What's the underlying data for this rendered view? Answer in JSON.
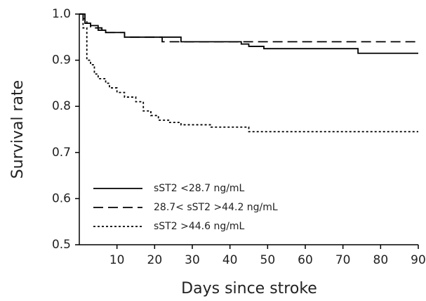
{
  "chart_data": {
    "type": "line",
    "ylabel": "Survival rate",
    "xlabel": "Days since stroke",
    "xlim": [
      0,
      90
    ],
    "xticks": [
      10,
      20,
      30,
      40,
      50,
      60,
      70,
      80,
      90
    ],
    "ylim": [
      0.5,
      1
    ],
    "yticks": [
      0.5,
      0.6,
      0.7,
      0.8,
      0.9,
      {
        "value": 1,
        "label": "1.0"
      }
    ],
    "legend": "lower left",
    "series": [
      {
        "name": "sST2 <28.7 ng/mL",
        "color": "#000000",
        "dash": "solid",
        "x": [
          0,
          1.5,
          1.5,
          3,
          3,
          5,
          5,
          7,
          7,
          12,
          12,
          27,
          27,
          43,
          43,
          45,
          45,
          49,
          49,
          74,
          74,
          90
        ],
        "values": [
          1,
          1,
          0.98,
          0.98,
          0.975,
          0.975,
          0.965,
          0.965,
          0.96,
          0.96,
          0.95,
          0.95,
          0.94,
          0.94,
          0.935,
          0.935,
          0.93,
          0.93,
          0.925,
          0.925,
          0.915,
          0.915
        ]
      },
      {
        "name": "28.7< sST2 >44.2 ng/mL",
        "color": "#000000",
        "dash": "dashed",
        "x": [
          0,
          1,
          1,
          2,
          2,
          3,
          3,
          6,
          6,
          12,
          12,
          22,
          22,
          90
        ],
        "values": [
          1,
          1,
          0.99,
          0.99,
          0.98,
          0.98,
          0.97,
          0.97,
          0.96,
          0.96,
          0.95,
          0.95,
          0.94,
          0.94
        ]
      },
      {
        "name": "sST2 >44.6 ng/mL",
        "color": "#000000",
        "dash": "dotted",
        "x": [
          0,
          1,
          1,
          2,
          2,
          3,
          3,
          4,
          4,
          5,
          5,
          7,
          7,
          8,
          8,
          10,
          10,
          12,
          12,
          15,
          15,
          17,
          17,
          19,
          19,
          21,
          21,
          24,
          24,
          27,
          27,
          35,
          35,
          45,
          45,
          90
        ],
        "values": [
          1,
          1,
          0.97,
          0.97,
          0.9,
          0.9,
          0.89,
          0.89,
          0.87,
          0.87,
          0.86,
          0.86,
          0.85,
          0.85,
          0.84,
          0.84,
          0.83,
          0.83,
          0.82,
          0.82,
          0.81,
          0.81,
          0.79,
          0.79,
          0.78,
          0.78,
          0.77,
          0.77,
          0.765,
          0.765,
          0.76,
          0.76,
          0.755,
          0.755,
          0.745,
          0.745
        ]
      }
    ]
  }
}
